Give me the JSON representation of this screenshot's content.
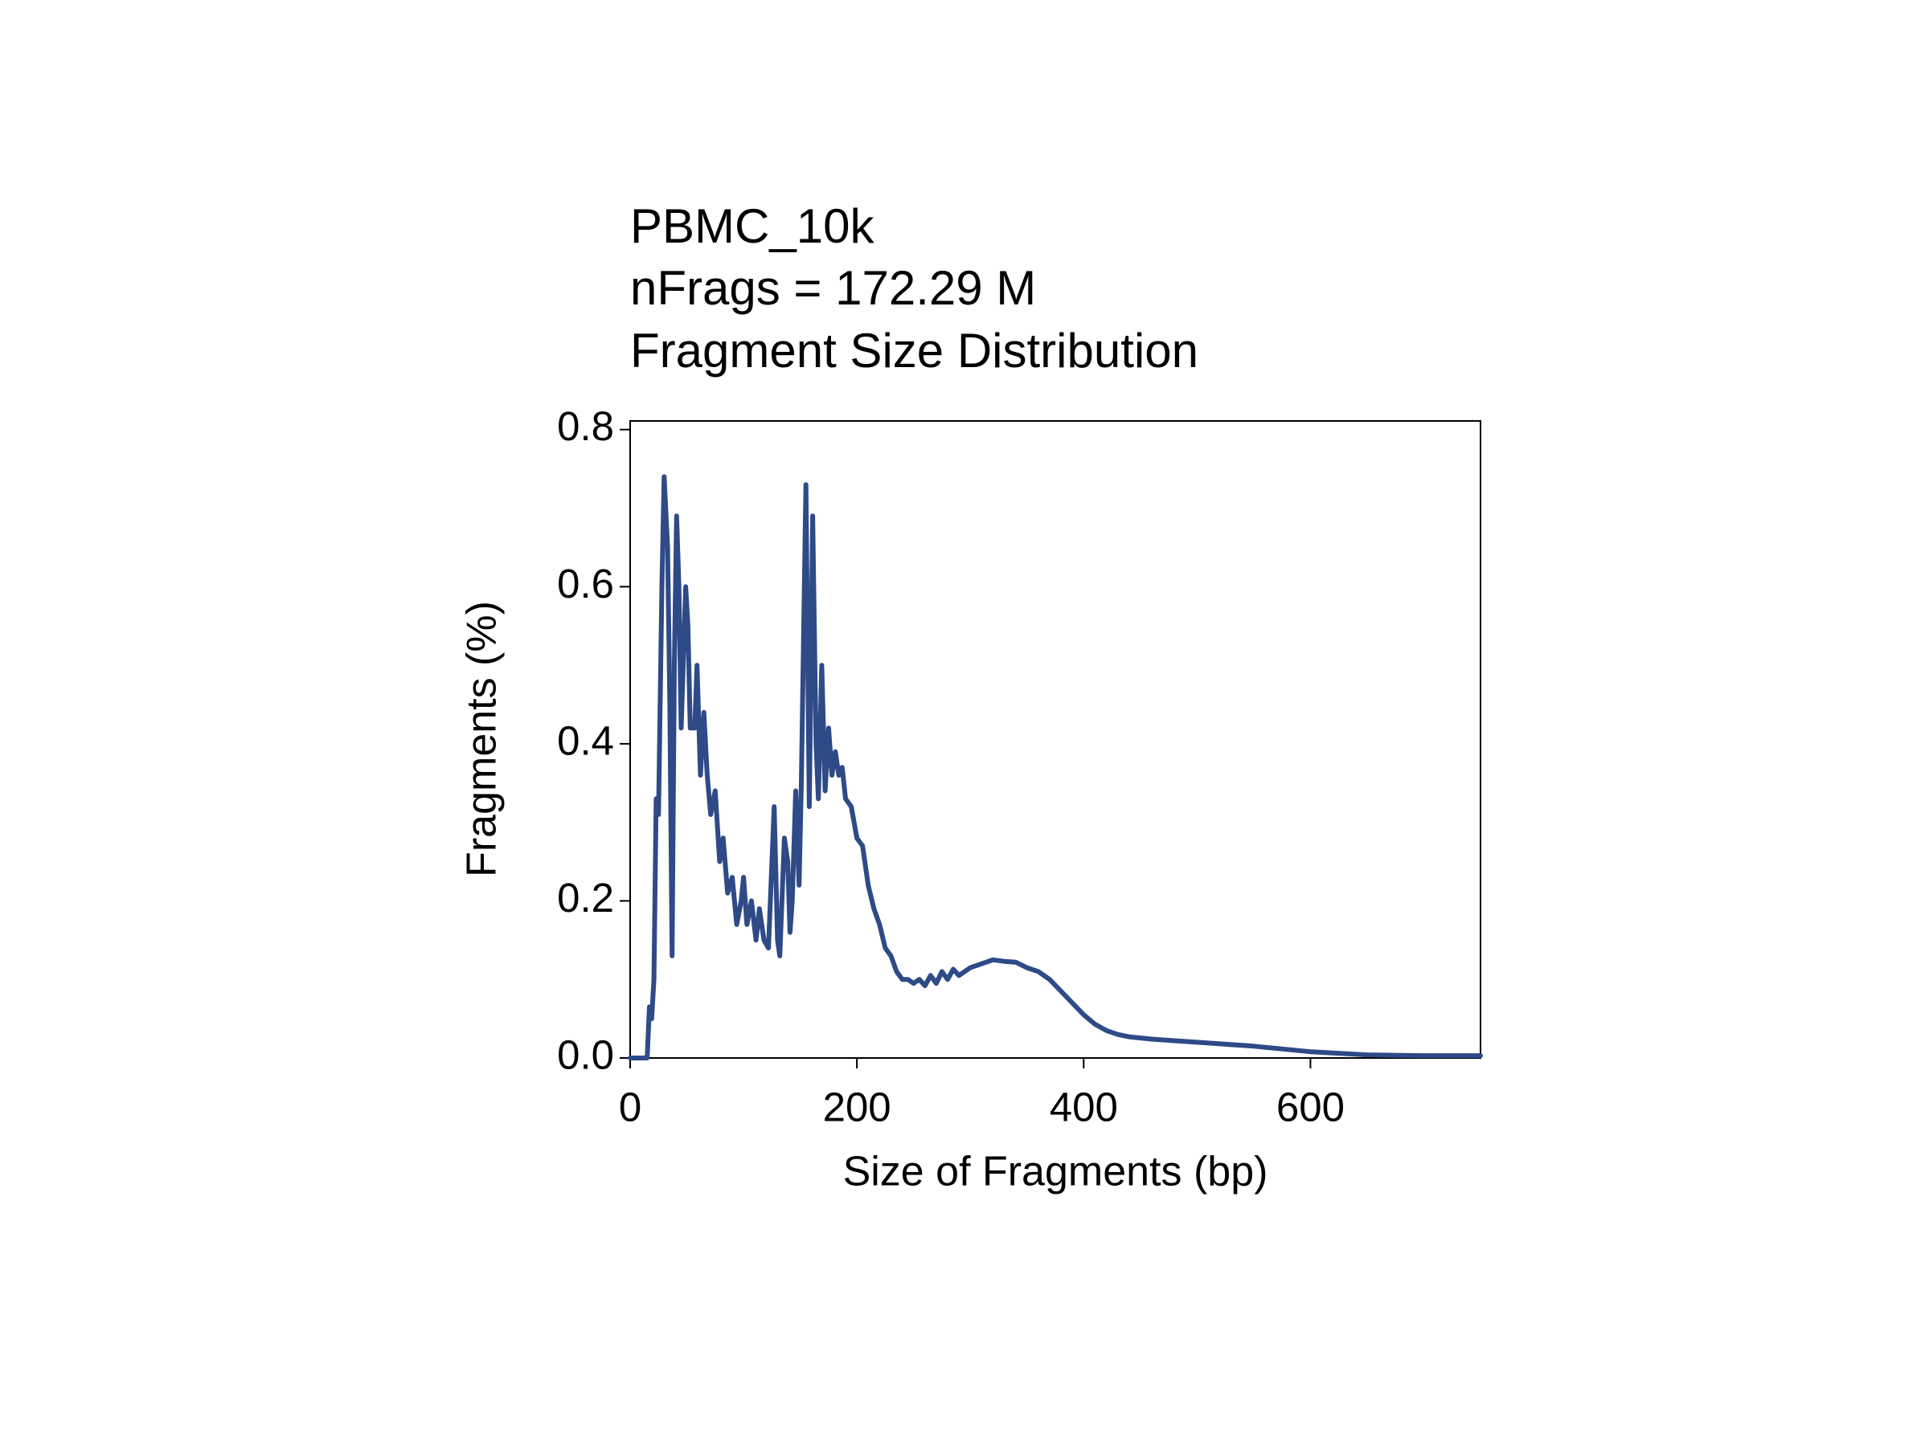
{
  "chart_data": {
    "type": "line",
    "title": [
      "PBMC_10k",
      "nFrags = 172.29 M",
      "Fragment Size Distribution"
    ],
    "xlabel": "Size of Fragments (bp)",
    "ylabel": "Fragments (%)",
    "color": "#2e4a87",
    "xlim": [
      0,
      750
    ],
    "ylim": [
      0,
      0.811
    ],
    "xticks": [
      0,
      200,
      400,
      600
    ],
    "yticks": [
      {
        "value": 0,
        "label": "0.0"
      },
      0.2,
      0.4,
      0.6,
      0.8
    ],
    "x": [
      0,
      15,
      17,
      19,
      21,
      23,
      25,
      28,
      30,
      33,
      35,
      37,
      39,
      41,
      43,
      45,
      49,
      51,
      53,
      57,
      59,
      62,
      65,
      68,
      71,
      75,
      79,
      82,
      86,
      90,
      94,
      98,
      100,
      103,
      107,
      111,
      114,
      118,
      122,
      127,
      130,
      132,
      136,
      139,
      141,
      143,
      146,
      149,
      151,
      155,
      158,
      161,
      164,
      166,
      169,
      172,
      175,
      178,
      181,
      184,
      187,
      190,
      195,
      200,
      205,
      210,
      215,
      220,
      225,
      230,
      235,
      240,
      245,
      250,
      255,
      260,
      265,
      270,
      275,
      280,
      285,
      290,
      300,
      310,
      320,
      330,
      340,
      350,
      360,
      370,
      380,
      390,
      400,
      410,
      420,
      430,
      440,
      460,
      480,
      500,
      550,
      600,
      650,
      700,
      750
    ],
    "values": [
      0,
      0,
      0.065,
      0.05,
      0.1,
      0.33,
      0.31,
      0.6,
      0.74,
      0.65,
      0.45,
      0.13,
      0.5,
      0.69,
      0.6,
      0.42,
      0.6,
      0.55,
      0.42,
      0.42,
      0.5,
      0.36,
      0.44,
      0.36,
      0.31,
      0.34,
      0.25,
      0.28,
      0.21,
      0.23,
      0.17,
      0.2,
      0.23,
      0.17,
      0.2,
      0.15,
      0.19,
      0.15,
      0.14,
      0.32,
      0.15,
      0.13,
      0.28,
      0.25,
      0.16,
      0.2,
      0.34,
      0.22,
      0.35,
      0.73,
      0.32,
      0.69,
      0.4,
      0.33,
      0.5,
      0.34,
      0.42,
      0.36,
      0.39,
      0.36,
      0.37,
      0.33,
      0.32,
      0.28,
      0.27,
      0.22,
      0.19,
      0.17,
      0.14,
      0.13,
      0.11,
      0.1,
      0.1,
      0.095,
      0.1,
      0.092,
      0.105,
      0.095,
      0.11,
      0.1,
      0.113,
      0.105,
      0.115,
      0.12,
      0.125,
      0.123,
      0.122,
      0.115,
      0.11,
      0.1,
      0.085,
      0.07,
      0.055,
      0.043,
      0.035,
      0.03,
      0.027,
      0.024,
      0.022,
      0.02,
      0.015,
      0.008,
      0.004,
      0.003,
      0.003
    ]
  }
}
